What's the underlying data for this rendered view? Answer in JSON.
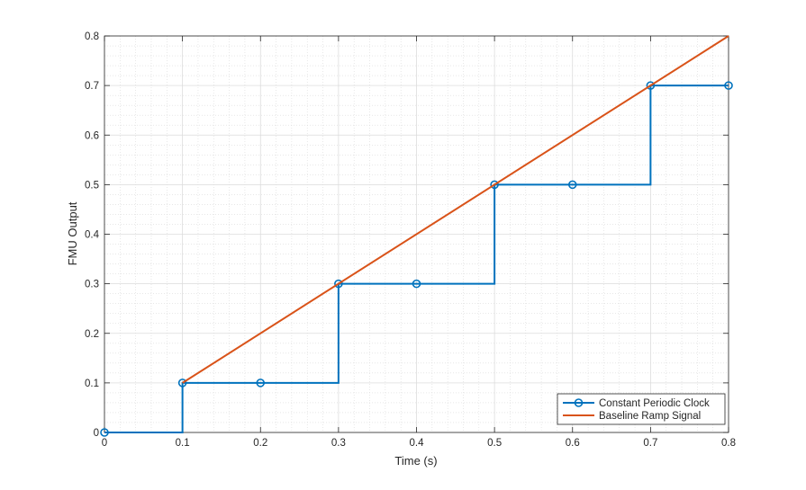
{
  "chart_data": {
    "type": "line",
    "xlabel": "Time (s)",
    "ylabel": "FMU Output",
    "xlim": [
      0,
      0.8
    ],
    "ylim": [
      0,
      0.8
    ],
    "xticks": [
      "0",
      "0.1",
      "0.2",
      "0.3",
      "0.4",
      "0.5",
      "0.6",
      "0.7",
      "0.8"
    ],
    "yticks": [
      "0",
      "0.1",
      "0.2",
      "0.3",
      "0.4",
      "0.5",
      "0.6",
      "0.7",
      "0.8"
    ],
    "grid": true,
    "minor_grid": true,
    "legend_position": "bottom-right",
    "series": [
      {
        "name": "Constant Periodic Clock",
        "style": "stairs-with-circle-markers",
        "color": "#0072BD",
        "x": [
          0,
          0.1,
          0.2,
          0.3,
          0.4,
          0.5,
          0.6,
          0.7,
          0.8
        ],
        "y": [
          0,
          0.1,
          0.1,
          0.3,
          0.3,
          0.5,
          0.5,
          0.7,
          0.7
        ]
      },
      {
        "name": "Baseline Ramp Signal",
        "style": "line",
        "color": "#D95319",
        "x": [
          0.1,
          0.8
        ],
        "y": [
          0.1,
          0.8
        ]
      }
    ]
  }
}
